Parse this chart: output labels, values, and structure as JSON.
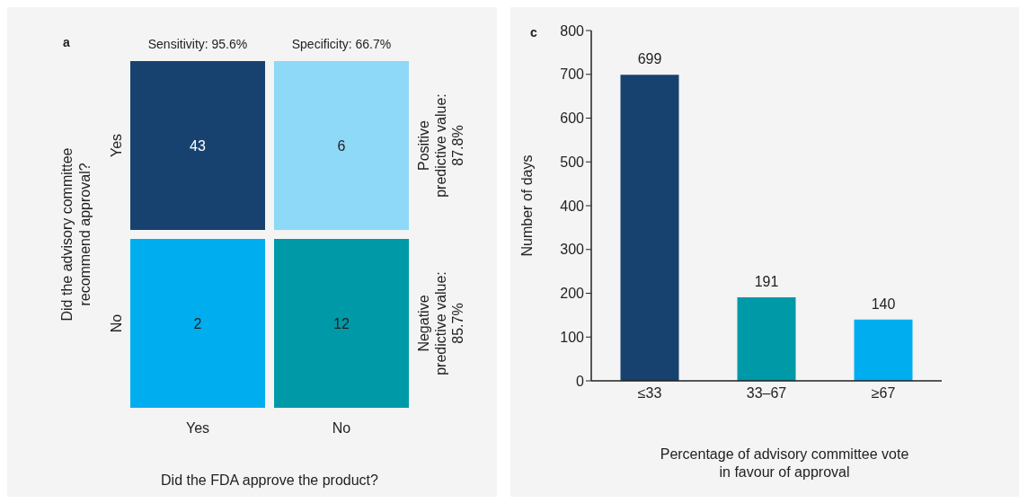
{
  "chart_data": [
    {
      "type": "heatmap",
      "title": "a",
      "categories": [
        "Yes",
        "No"
      ],
      "y_categories": [
        "Yes",
        "No"
      ],
      "y2_categories": [
        "Positive predictive value: 87.8%",
        "Negative predictive value: 85.7%"
      ],
      "cells": [
        [
          43,
          6
        ],
        [
          2,
          12
        ]
      ],
      "data_labels": true,
      "colors": [
        "#17426f",
        "#8ed8f8",
        "#00aeef",
        "#0099a8"
      ],
      "xlabel": "Did the FDA approve the product?",
      "ylabel": "Did the advisory committee recommend approval?",
      "annotations": [
        "Sensitivity: 95.6%",
        "Specificity: 66.7%"
      ]
    },
    {
      "type": "bar",
      "title": "c",
      "categories": [
        "≤33",
        "33–67",
        "≥67"
      ],
      "values": [
        699,
        191,
        140
      ],
      "colors": [
        "#17426f",
        "#0099a8",
        "#00aeef"
      ],
      "ylim": [
        0,
        800
      ],
      "yticks": [
        0,
        100,
        200,
        300,
        400,
        500,
        600,
        700,
        800
      ],
      "data_labels": true,
      "xlabel": "Percentage of advisory committee vote in favour of approval",
      "ylabel": "Number of days"
    }
  ]
}
